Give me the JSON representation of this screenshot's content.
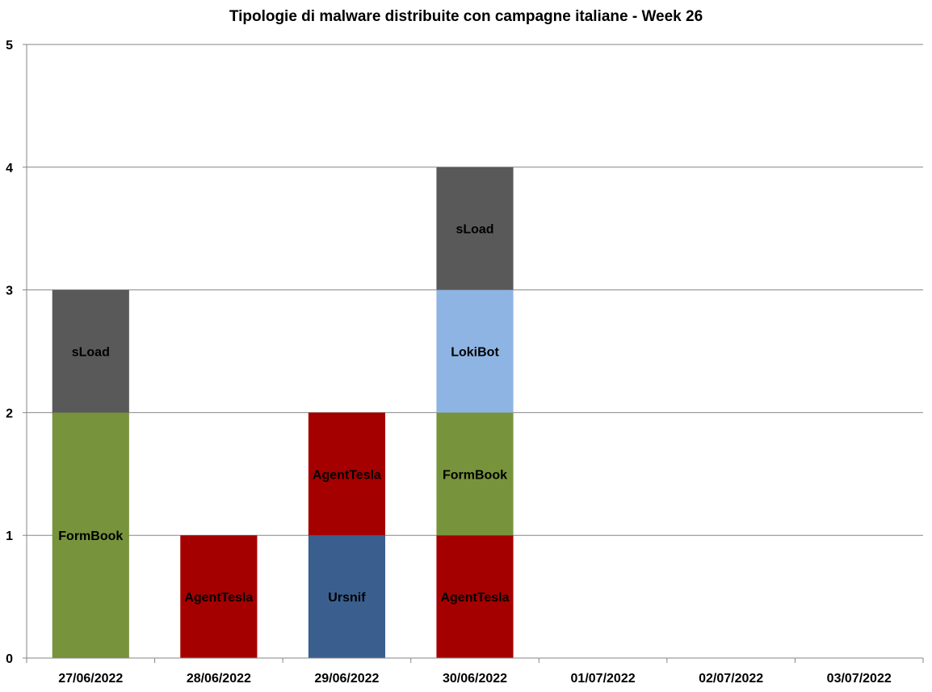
{
  "chart_data": {
    "type": "bar",
    "stacked": true,
    "title": "Tipologie  di malware distribuite con campagne italiane - Week 26",
    "xlabel": "",
    "ylabel": "",
    "ylim": [
      0,
      5
    ],
    "yticks": [
      "0",
      "1",
      "2",
      "3",
      "4",
      "5"
    ],
    "grid": true,
    "legend": "none",
    "categories": [
      "27/06/2022",
      "28/06/2022",
      "29/06/2022",
      "30/06/2022",
      "01/07/2022",
      "02/07/2022",
      "03/07/2022"
    ],
    "stacks": [
      [
        {
          "label": "FormBook",
          "value": 2,
          "color": "#77933c"
        },
        {
          "label": "sLoad",
          "value": 1,
          "color": "#595959"
        }
      ],
      [
        {
          "label": "AgentTesla",
          "value": 1,
          "color": "#a50000"
        }
      ],
      [
        {
          "label": "Ursnif",
          "value": 1,
          "color": "#3a5f8f"
        },
        {
          "label": "AgentTesla",
          "value": 1,
          "color": "#a50000"
        }
      ],
      [
        {
          "label": "AgentTesla",
          "value": 1,
          "color": "#a50000"
        },
        {
          "label": "FormBook",
          "value": 1,
          "color": "#77933c"
        },
        {
          "label": "LokiBot",
          "value": 1,
          "color": "#8eb4e3"
        },
        {
          "label": "sLoad",
          "value": 1,
          "color": "#595959"
        }
      ],
      [],
      [],
      []
    ]
  }
}
